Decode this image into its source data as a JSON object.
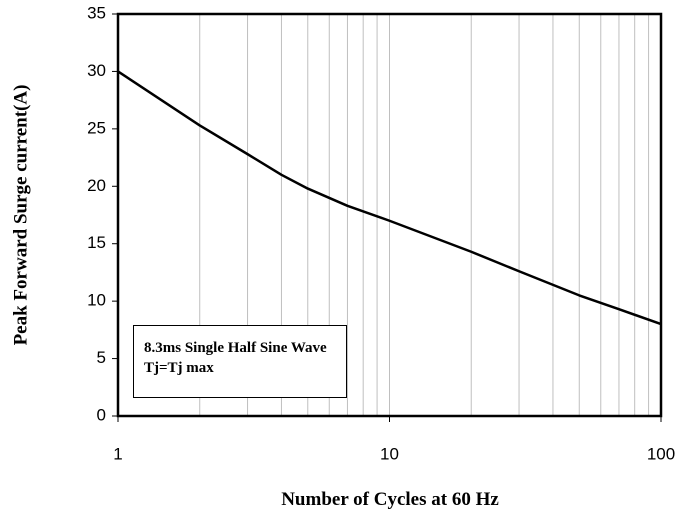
{
  "chart_data": {
    "type": "line",
    "x_label": "Number of Cycles at 60 Hz",
    "y_label": "Peak Forward Surge current(A)",
    "annotation": "8.3ms Single Half Sine Wave Tj=Tj max",
    "x": [
      1,
      2,
      3,
      4,
      5,
      7,
      10,
      20,
      30,
      50,
      70,
      100
    ],
    "series": [
      {
        "name": "Surge current",
        "color": "#000000",
        "values": [
          30,
          25.3,
          22.8,
          21,
          19.8,
          18.3,
          17,
          14.3,
          12.6,
          10.5,
          9.3,
          8
        ]
      }
    ],
    "xlim": [
      1,
      100
    ],
    "xticks": [
      1,
      10,
      100
    ],
    "xscale": "log",
    "ylim": [
      0,
      35
    ],
    "yticks": [
      0,
      5,
      10,
      15,
      20,
      25,
      30,
      35
    ],
    "grid": "x"
  }
}
